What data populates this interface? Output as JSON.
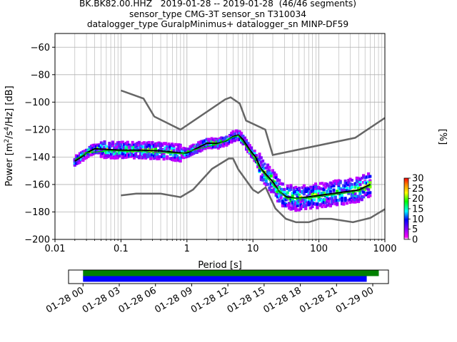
{
  "title_lines": [
    "BK.BK82.00.HHZ   2019-01-28 -- 2019-01-28  (46/46 segments)",
    "sensor_type CMG-3T sensor_sn T310034",
    "datalogger_type GuralpMinimus+ datalogger_sn MINP-DF59"
  ],
  "chart_data": [
    {
      "type": "heatmap",
      "title": "BK.BK82.00.HHZ   2019-01-28 -- 2019-01-28  (46/46 segments)",
      "xlabel": "Period [s]",
      "ylabel": "Power [m2/s4/Hz] [dB]",
      "x_scale": "log",
      "xlim": [
        0.01,
        1000
      ],
      "ylim": [
        -200,
        -50
      ],
      "x_tick_labels": [
        "0.01",
        "0.1",
        "1",
        "10",
        "100",
        "1000"
      ],
      "y_ticks": [
        -60,
        -80,
        -100,
        -120,
        -140,
        -160,
        -180,
        -200
      ],
      "grid": true,
      "colorbar": {
        "label": "[%]",
        "min": 0,
        "max": 30,
        "ticks": [
          0,
          5,
          10,
          15,
          20,
          25,
          30
        ]
      },
      "series": [
        {
          "name": "NHNM",
          "color": "#666666",
          "points": [
            [
              0.1,
              -91.5
            ],
            [
              0.22,
              -97.4
            ],
            [
              0.32,
              -110.5
            ],
            [
              0.8,
              -120
            ],
            [
              3.8,
              -98
            ],
            [
              4.6,
              -96.5
            ],
            [
              6.3,
              -101
            ],
            [
              7.9,
              -113.5
            ],
            [
              15.4,
              -120
            ],
            [
              20,
              -138.5
            ],
            [
              354.8,
              -126
            ],
            [
              1000,
              -111.5
            ]
          ]
        },
        {
          "name": "NLNM",
          "color": "#666666",
          "points": [
            [
              0.1,
              -168
            ],
            [
              0.17,
              -166.7
            ],
            [
              0.4,
              -166.7
            ],
            [
              0.8,
              -169.2
            ],
            [
              1.24,
              -163.7
            ],
            [
              2.4,
              -148.6
            ],
            [
              4.3,
              -141.1
            ],
            [
              5,
              -141.1
            ],
            [
              6,
              -149
            ],
            [
              10,
              -163.8
            ],
            [
              12,
              -166.2
            ],
            [
              15.6,
              -162.1
            ],
            [
              21.9,
              -177.5
            ],
            [
              31.6,
              -185
            ],
            [
              45,
              -187.5
            ],
            [
              70,
              -187.5
            ],
            [
              101,
              -185
            ],
            [
              154,
              -185
            ],
            [
              328,
              -187.5
            ],
            [
              600,
              -184.4
            ],
            [
              1000,
              -178
            ]
          ]
        },
        {
          "name": "mode",
          "color": "#000000",
          "points": [
            [
              0.02,
              -143
            ],
            [
              0.025,
              -140
            ],
            [
              0.03,
              -137
            ],
            [
              0.04,
              -134
            ],
            [
              0.06,
              -134.5
            ],
            [
              0.1,
              -135
            ],
            [
              0.2,
              -135
            ],
            [
              0.4,
              -135.5
            ],
            [
              0.8,
              -137
            ],
            [
              1,
              -137
            ],
            [
              1.5,
              -133
            ],
            [
              2,
              -130
            ],
            [
              3,
              -130
            ],
            [
              4,
              -128
            ],
            [
              5,
              -125
            ],
            [
              6,
              -124
            ],
            [
              7,
              -127
            ],
            [
              9,
              -135
            ],
            [
              11,
              -140
            ],
            [
              13,
              -148
            ],
            [
              16,
              -153
            ],
            [
              20,
              -158
            ],
            [
              25,
              -165
            ],
            [
              32,
              -169
            ],
            [
              45,
              -170
            ],
            [
              70,
              -169
            ],
            [
              100,
              -168
            ],
            [
              200,
              -166
            ],
            [
              400,
              -164
            ],
            [
              600,
              -160
            ]
          ]
        },
        {
          "name": "mean",
          "color": "#00cc00",
          "points": [
            [
              0.02,
              -142
            ],
            [
              0.03,
              -137
            ],
            [
              0.06,
              -135.5
            ],
            [
              0.2,
              -136
            ],
            [
              0.8,
              -137.5
            ],
            [
              1.5,
              -134
            ],
            [
              3,
              -130.5
            ],
            [
              5,
              -125.5
            ],
            [
              6,
              -124.5
            ],
            [
              9,
              -136
            ],
            [
              13,
              -149
            ],
            [
              20,
              -160
            ],
            [
              32,
              -170
            ],
            [
              70,
              -170
            ],
            [
              200,
              -167
            ],
            [
              400,
              -165
            ],
            [
              600,
              -161
            ]
          ]
        }
      ]
    },
    {
      "type": "timeline",
      "x_tick_labels": [
        "01-28 00",
        "01-28 03",
        "01-28 06",
        "01-28 09",
        "01-28 12",
        "01-28 15",
        "01-28 18",
        "01-28 21",
        "01-29 00"
      ],
      "xlim_hours": [
        -1.2,
        25.3
      ],
      "bars": [
        {
          "name": "data availability",
          "color": "#008000",
          "start_hours": 0,
          "end_hours": 24.5
        },
        {
          "name": "processed segments",
          "color": "#0000ff",
          "start_hours": 0,
          "end_hours": 23.5
        }
      ]
    }
  ]
}
